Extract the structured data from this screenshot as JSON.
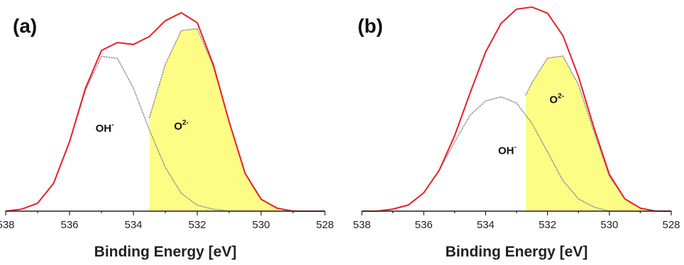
{
  "chart_data": [
    {
      "type": "line",
      "panel_label": "(a)",
      "xlabel": "Binding Energy [eV]",
      "ylabel": "",
      "xlim": [
        538,
        528
      ],
      "x_reversed": true,
      "xticks": [
        538,
        536,
        534,
        532,
        530,
        528
      ],
      "grid": false,
      "series": [
        {
          "key": "envelope",
          "role": "envelope",
          "color": "#e8202a",
          "style": "solid",
          "x": [
            538.0,
            537.5,
            537.0,
            536.5,
            536.0,
            535.5,
            535.0,
            534.5,
            534.0,
            533.5,
            533.0,
            532.5,
            532.0,
            531.5,
            531.0,
            530.5,
            530.0,
            529.5,
            529.0,
            528.5,
            528.0
          ],
          "y": [
            0.0,
            0.01,
            0.04,
            0.14,
            0.35,
            0.62,
            0.81,
            0.85,
            0.84,
            0.88,
            0.96,
            1.0,
            0.95,
            0.74,
            0.45,
            0.19,
            0.06,
            0.015,
            0.0,
            0.0,
            0.0
          ]
        },
        {
          "key": "oh",
          "role": "component",
          "color": "#9a9a9a",
          "style": "dotted",
          "fill": "none",
          "x": [
            538.0,
            537.5,
            537.0,
            536.5,
            536.0,
            535.5,
            535.0,
            534.5,
            534.0,
            533.5,
            533.0,
            532.5,
            532.0,
            531.5,
            531.0,
            530.5,
            530.0,
            529.5,
            529.0,
            528.5,
            528.0
          ],
          "y": [
            0.0,
            0.01,
            0.04,
            0.14,
            0.35,
            0.61,
            0.78,
            0.77,
            0.62,
            0.41,
            0.22,
            0.09,
            0.03,
            0.01,
            0.0,
            0.0,
            0.0,
            0.0,
            0.0,
            0.0,
            0.0
          ]
        },
        {
          "key": "o2",
          "role": "component",
          "color": "#9a9a9a",
          "style": "dotted",
          "fill": "#fdfd86",
          "fill_from_x": 533.5,
          "x": [
            533.5,
            533.0,
            532.5,
            532.0,
            531.5,
            531.0,
            530.5,
            530.0,
            529.5,
            529.0,
            528.5,
            528.0
          ],
          "y": [
            0.47,
            0.74,
            0.91,
            0.92,
            0.73,
            0.45,
            0.19,
            0.06,
            0.015,
            0.0,
            0.0,
            0.0
          ]
        }
      ],
      "annotations": [
        {
          "base": "OH",
          "sup": "-",
          "x": 534.9,
          "y": 0.4
        },
        {
          "base": "O",
          "sup": "2-",
          "x": 532.5,
          "y": 0.41
        }
      ]
    },
    {
      "type": "line",
      "panel_label": "(b)",
      "xlabel": "Binding Energy [eV]",
      "ylabel": "",
      "xlim": [
        538,
        528
      ],
      "x_reversed": true,
      "xticks": [
        538,
        536,
        534,
        532,
        530,
        528
      ],
      "grid": false,
      "series": [
        {
          "key": "envelope",
          "role": "envelope",
          "color": "#e8202a",
          "style": "solid",
          "x": [
            538.0,
            537.5,
            537.0,
            536.5,
            536.0,
            535.5,
            535.0,
            534.5,
            534.0,
            533.5,
            533.0,
            532.5,
            532.0,
            531.5,
            531.0,
            530.5,
            530.0,
            529.5,
            529.0,
            528.5,
            528.0
          ],
          "y": [
            0.0,
            0.0,
            0.01,
            0.03,
            0.09,
            0.2,
            0.37,
            0.58,
            0.78,
            0.92,
            0.99,
            1.0,
            0.97,
            0.86,
            0.66,
            0.41,
            0.18,
            0.06,
            0.015,
            0.0,
            0.0
          ]
        },
        {
          "key": "oh",
          "role": "component",
          "color": "#9a9a9a",
          "style": "dotted",
          "fill": "none",
          "x": [
            538.0,
            537.5,
            537.0,
            536.5,
            536.0,
            535.5,
            535.0,
            534.5,
            534.0,
            533.5,
            533.0,
            532.5,
            532.0,
            531.5,
            531.0,
            530.5,
            530.0,
            529.5,
            529.0,
            528.5,
            528.0
          ],
          "y": [
            0.0,
            0.0,
            0.01,
            0.03,
            0.09,
            0.2,
            0.34,
            0.47,
            0.54,
            0.56,
            0.53,
            0.43,
            0.29,
            0.15,
            0.06,
            0.02,
            0.0,
            0.0,
            0.0,
            0.0,
            0.0
          ]
        },
        {
          "key": "o2",
          "role": "component",
          "color": "#9a9a9a",
          "style": "dotted",
          "fill": "#fdfd86",
          "fill_from_x": 532.7,
          "x": [
            532.7,
            532.5,
            532.0,
            531.5,
            531.0,
            530.5,
            530.0,
            529.5,
            529.0,
            528.5,
            528.0
          ],
          "y": [
            0.57,
            0.63,
            0.75,
            0.76,
            0.62,
            0.39,
            0.17,
            0.06,
            0.015,
            0.0,
            0.0
          ]
        }
      ],
      "annotations": [
        {
          "base": "OH",
          "sup": "-",
          "x": 533.3,
          "y": 0.28
        },
        {
          "base": "O",
          "sup": "2-",
          "x": 531.7,
          "y": 0.53
        }
      ]
    }
  ]
}
